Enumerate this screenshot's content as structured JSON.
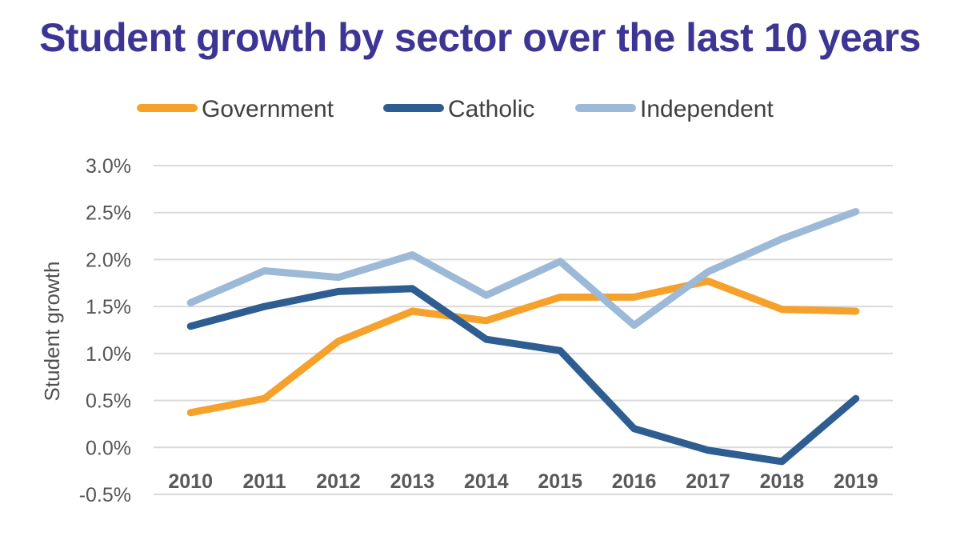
{
  "chart_data": {
    "type": "line",
    "title": "Student growth by sector over the last 10 years",
    "xlabel": "",
    "ylabel": "Student growth",
    "categories": [
      "2010",
      "2011",
      "2012",
      "2013",
      "2014",
      "2015",
      "2016",
      "2017",
      "2018",
      "2019"
    ],
    "y_ticks": [
      3.0,
      2.5,
      2.0,
      1.5,
      1.0,
      0.5,
      0.0,
      -0.5
    ],
    "y_tick_labels": [
      "3.0%",
      "2.5%",
      "2.0%",
      "1.5%",
      "1.0%",
      "0.5%",
      "0.0%",
      "-0.5%"
    ],
    "ylim": [
      -0.5,
      3.0
    ],
    "grid": true,
    "legend_position": "top",
    "series": [
      {
        "name": "Government",
        "color": "#f6a12b",
        "values": [
          0.37,
          0.52,
          1.13,
          1.45,
          1.35,
          1.6,
          1.6,
          1.77,
          1.47,
          1.45
        ]
      },
      {
        "name": "Catholic",
        "color": "#2e5d92",
        "values": [
          1.29,
          1.5,
          1.66,
          1.69,
          1.15,
          1.03,
          0.2,
          -0.03,
          -0.15,
          0.52
        ]
      },
      {
        "name": "Independent",
        "color": "#9cb9d7",
        "values": [
          1.54,
          1.88,
          1.81,
          2.05,
          1.62,
          1.98,
          1.3,
          1.87,
          2.22,
          2.51
        ]
      }
    ]
  }
}
